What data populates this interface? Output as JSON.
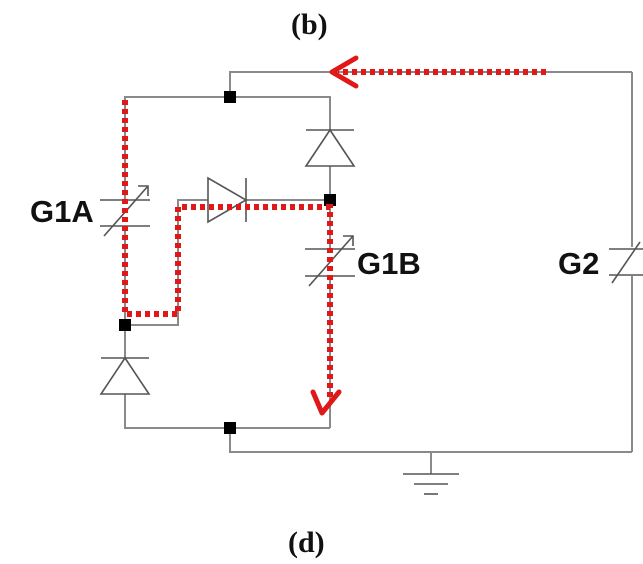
{
  "captions": {
    "top": "(b)",
    "bottom": "(d)"
  },
  "components": {
    "g1a": "G1A",
    "g1b": "G1B",
    "g2": "G2"
  },
  "colors": {
    "wire": "#8a8a8a",
    "node": "#000000",
    "current_path": "#e01818",
    "text": "#111111"
  }
}
